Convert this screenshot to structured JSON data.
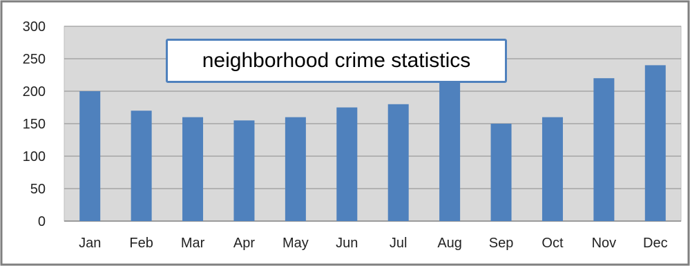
{
  "chart_data": {
    "type": "bar",
    "title": "neighborhood crime statistics",
    "categories": [
      "Jan",
      "Feb",
      "Mar",
      "Apr",
      "May",
      "Jun",
      "Jul",
      "Aug",
      "Sep",
      "Oct",
      "Nov",
      "Dec"
    ],
    "values": [
      200,
      170,
      160,
      155,
      160,
      175,
      180,
      220,
      150,
      160,
      220,
      240
    ],
    "xlabel": "",
    "ylabel": "",
    "ylim": [
      0,
      300
    ],
    "yticks": [
      0,
      50,
      100,
      150,
      200,
      250,
      300
    ],
    "grid": true,
    "legend": "none",
    "colors": {
      "bar": "#4f81bd",
      "plot_background": "#d9d9d9",
      "frame": "#7f7f7f",
      "gridline": "#8c8c8c",
      "title_border": "#4f81bd"
    }
  }
}
